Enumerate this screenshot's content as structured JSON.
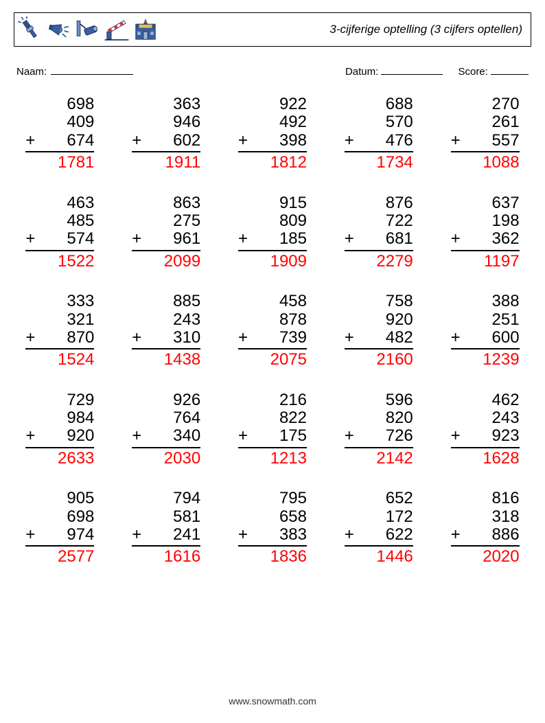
{
  "header": {
    "title": "3-cijferige optelling (3 cijfers optellen)"
  },
  "fields": {
    "name_label": "Naam:",
    "date_label": "Datum:",
    "score_label": "Score:"
  },
  "style": {
    "answer_color": "#ff0000",
    "text_color": "#000000",
    "fontsize_problem": 24,
    "fontsize_title": 17,
    "fontsize_fields": 15,
    "grid_cols": 5,
    "grid_rows": 5,
    "operator": "+"
  },
  "problems": [
    {
      "a": 698,
      "b": 409,
      "c": 674,
      "ans": 1781
    },
    {
      "a": 363,
      "b": 946,
      "c": 602,
      "ans": 1911
    },
    {
      "a": 922,
      "b": 492,
      "c": 398,
      "ans": 1812
    },
    {
      "a": 688,
      "b": 570,
      "c": 476,
      "ans": 1734
    },
    {
      "a": 270,
      "b": 261,
      "c": 557,
      "ans": 1088
    },
    {
      "a": 463,
      "b": 485,
      "c": 574,
      "ans": 1522
    },
    {
      "a": 863,
      "b": 275,
      "c": 961,
      "ans": 2099
    },
    {
      "a": 915,
      "b": 809,
      "c": 185,
      "ans": 1909
    },
    {
      "a": 876,
      "b": 722,
      "c": 681,
      "ans": 2279
    },
    {
      "a": 637,
      "b": 198,
      "c": 362,
      "ans": 1197
    },
    {
      "a": 333,
      "b": 321,
      "c": 870,
      "ans": 1524
    },
    {
      "a": 885,
      "b": 243,
      "c": 310,
      "ans": 1438
    },
    {
      "a": 458,
      "b": 878,
      "c": 739,
      "ans": 2075
    },
    {
      "a": 758,
      "b": 920,
      "c": 482,
      "ans": 2160
    },
    {
      "a": 388,
      "b": 251,
      "c": 600,
      "ans": 1239
    },
    {
      "a": 729,
      "b": 984,
      "c": 920,
      "ans": 2633
    },
    {
      "a": 926,
      "b": 764,
      "c": 340,
      "ans": 2030
    },
    {
      "a": 216,
      "b": 822,
      "c": 175,
      "ans": 1213
    },
    {
      "a": 596,
      "b": 820,
      "c": 726,
      "ans": 2142
    },
    {
      "a": 462,
      "b": 243,
      "c": 923,
      "ans": 1628
    },
    {
      "a": 905,
      "b": 698,
      "c": 974,
      "ans": 2577
    },
    {
      "a": 794,
      "b": 581,
      "c": 241,
      "ans": 1616
    },
    {
      "a": 795,
      "b": 658,
      "c": 383,
      "ans": 1836
    },
    {
      "a": 652,
      "b": 172,
      "c": 622,
      "ans": 1446
    },
    {
      "a": 816,
      "b": 318,
      "c": 886,
      "ans": 2020
    }
  ],
  "footer": {
    "text": "www.snowmath.com"
  }
}
